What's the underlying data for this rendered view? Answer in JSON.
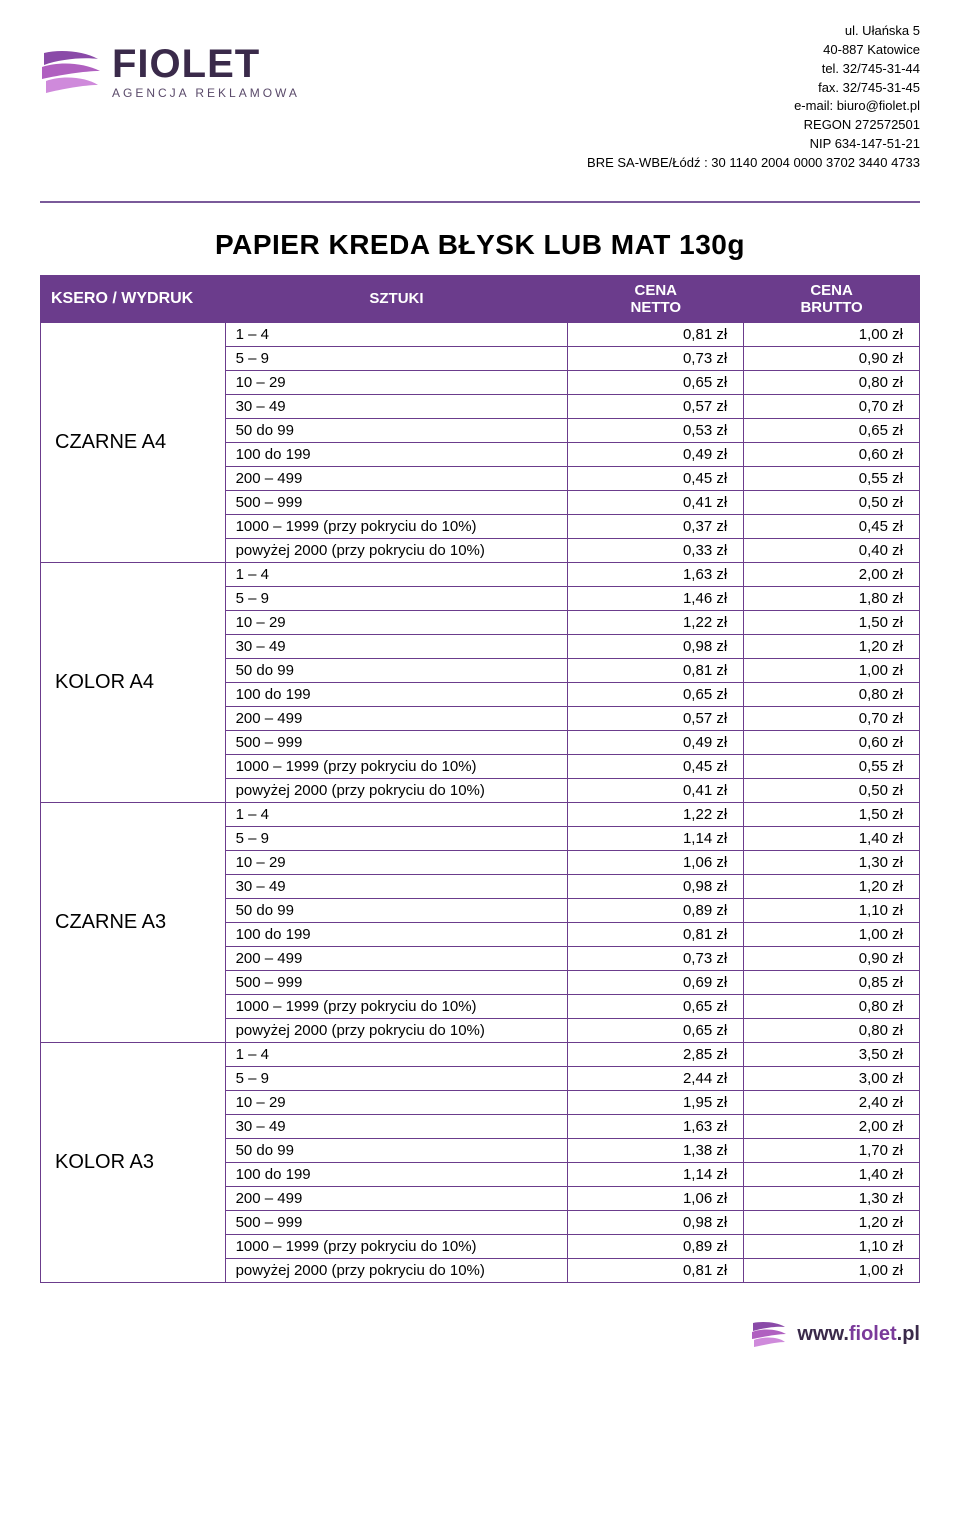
{
  "brand": {
    "name": "FIOLET",
    "tagline": "AGENCJA REKLAMOWA",
    "colors": {
      "primary": "#6b3c8c",
      "text_dark": "#3a2a4a",
      "accent": "#7a3a9a",
      "stripe1": "#8a4aa8",
      "stripe2": "#b060c0",
      "stripe3": "#cf8adb"
    }
  },
  "company": {
    "address1": "ul. Ułańska 5",
    "address2": "40-887 Katowice",
    "tel": "tel. 32/745-31-44",
    "fax": "fax. 32/745-31-45",
    "email": "e-mail: biuro@fiolet.pl",
    "regon": "REGON 272572501",
    "nip": "NIP 634-147-51-21",
    "bank": "BRE SA-WBE/Łódź : 30 1140 2004 0000 3702 3440 4733"
  },
  "title": "PAPIER KREDA BŁYSK LUB MAT 130g",
  "table": {
    "headers": {
      "ksero": "KSERO / WYDRUK",
      "sztuki": "SZTUKI",
      "netto_l1": "CENA",
      "netto_l2": "NETTO",
      "brutto_l1": "CENA",
      "brutto_l2": "BRUTTO"
    },
    "groups": [
      {
        "label": "CZARNE A4",
        "rows": [
          {
            "q": "1 – 4",
            "n": "0,81 zł",
            "b": "1,00 zł"
          },
          {
            "q": "5 – 9",
            "n": "0,73 zł",
            "b": "0,90 zł"
          },
          {
            "q": "10 – 29",
            "n": "0,65 zł",
            "b": "0,80 zł"
          },
          {
            "q": "30 – 49",
            "n": "0,57 zł",
            "b": "0,70 zł"
          },
          {
            "q": "50 do 99",
            "n": "0,53 zł",
            "b": "0,65 zł"
          },
          {
            "q": "100 do 199",
            "n": "0,49 zł",
            "b": "0,60 zł"
          },
          {
            "q": "200 – 499",
            "n": "0,45 zł",
            "b": "0,55 zł"
          },
          {
            "q": "500 – 999",
            "n": "0,41 zł",
            "b": "0,50 zł"
          },
          {
            "q": "1000 – 1999 (przy pokryciu do 10%)",
            "n": "0,37 zł",
            "b": "0,45 zł"
          },
          {
            "q": "powyżej 2000 (przy pokryciu do 10%)",
            "n": "0,33 zł",
            "b": "0,40 zł"
          }
        ]
      },
      {
        "label": "KOLOR A4",
        "rows": [
          {
            "q": "1 – 4",
            "n": "1,63 zł",
            "b": "2,00 zł"
          },
          {
            "q": "5 – 9",
            "n": "1,46 zł",
            "b": "1,80 zł"
          },
          {
            "q": "10 – 29",
            "n": "1,22 zł",
            "b": "1,50 zł"
          },
          {
            "q": "30 – 49",
            "n": "0,98 zł",
            "b": "1,20 zł"
          },
          {
            "q": "50 do 99",
            "n": "0,81 zł",
            "b": "1,00 zł"
          },
          {
            "q": "100 do 199",
            "n": "0,65 zł",
            "b": "0,80 zł"
          },
          {
            "q": "200 – 499",
            "n": "0,57 zł",
            "b": "0,70 zł"
          },
          {
            "q": "500 – 999",
            "n": "0,49 zł",
            "b": "0,60 zł"
          },
          {
            "q": "1000 – 1999 (przy pokryciu do 10%)",
            "n": "0,45 zł",
            "b": "0,55 zł"
          },
          {
            "q": "powyżej 2000 (przy pokryciu do 10%)",
            "n": "0,41 zł",
            "b": "0,50 zł"
          }
        ]
      },
      {
        "label": "CZARNE A3",
        "rows": [
          {
            "q": "1 – 4",
            "n": "1,22 zł",
            "b": "1,50 zł"
          },
          {
            "q": "5 – 9",
            "n": "1,14 zł",
            "b": "1,40 zł"
          },
          {
            "q": "10 – 29",
            "n": "1,06 zł",
            "b": "1,30 zł"
          },
          {
            "q": "30 – 49",
            "n": "0,98 zł",
            "b": "1,20 zł"
          },
          {
            "q": "50 do 99",
            "n": "0,89 zł",
            "b": "1,10 zł"
          },
          {
            "q": "100 do 199",
            "n": "0,81 zł",
            "b": "1,00 zł"
          },
          {
            "q": "200 – 499",
            "n": "0,73 zł",
            "b": "0,90 zł"
          },
          {
            "q": "500 – 999",
            "n": "0,69 zł",
            "b": "0,85 zł"
          },
          {
            "q": "1000 – 1999 (przy pokryciu do 10%)",
            "n": "0,65 zł",
            "b": "0,80 zł"
          },
          {
            "q": "powyżej 2000 (przy pokryciu do 10%)",
            "n": "0,65 zł",
            "b": "0,80 zł"
          }
        ]
      },
      {
        "label": "KOLOR A3",
        "rows": [
          {
            "q": "1 – 4",
            "n": "2,85 zł",
            "b": "3,50 zł"
          },
          {
            "q": "5 – 9",
            "n": "2,44 zł",
            "b": "3,00 zł"
          },
          {
            "q": "10 – 29",
            "n": "1,95 zł",
            "b": "2,40 zł"
          },
          {
            "q": "30 – 49",
            "n": "1,63 zł",
            "b": "2,00 zł"
          },
          {
            "q": "50 do 99",
            "n": "1,38 zł",
            "b": "1,70 zł"
          },
          {
            "q": "100 do 199",
            "n": "1,14 zł",
            "b": "1,40 zł"
          },
          {
            "q": "200 – 499",
            "n": "1,06 zł",
            "b": "1,30 zł"
          },
          {
            "q": "500 – 999",
            "n": "0,98 zł",
            "b": "1,20 zł"
          },
          {
            "q": "1000 – 1999 (przy pokryciu do 10%)",
            "n": "0,89 zł",
            "b": "1,10 zł"
          },
          {
            "q": "powyżej 2000 (przy pokryciu do 10%)",
            "n": "0,81 zł",
            "b": "1,00 zł"
          }
        ]
      }
    ]
  },
  "footer": {
    "url_prefix": "www.",
    "url_accent": "fiolet",
    "url_suffix": ".pl"
  }
}
